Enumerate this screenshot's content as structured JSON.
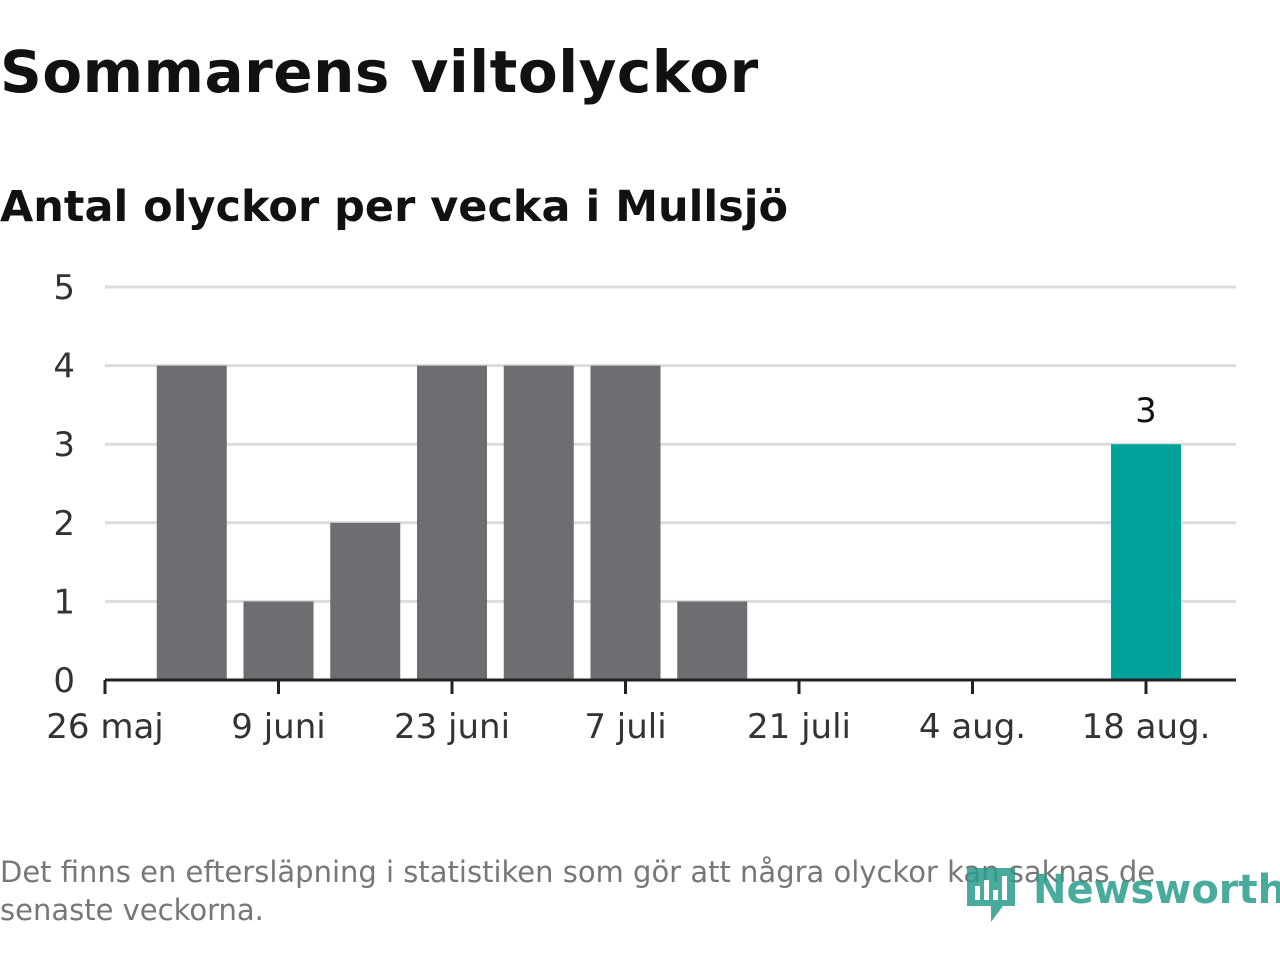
{
  "title": "Sommarens viltolyckor",
  "subtitle": "Antal olyckor per vecka i Mullsjö",
  "footnote": "Det finns en eftersläpning i statistiken som gör att några olyckor kan saknas de senaste veckorna.",
  "brand": {
    "name": "Newsworthy",
    "color": "#2a9d8a"
  },
  "chart_data": {
    "type": "bar",
    "x_dates": [
      "2019-06-02",
      "2019-06-09",
      "2019-06-16",
      "2019-06-23",
      "2019-06-30",
      "2019-07-07",
      "2019-07-14",
      "2019-07-21",
      "2019-07-28",
      "2019-08-04",
      "2019-08-11",
      "2019-08-18"
    ],
    "values": [
      4,
      1,
      2,
      4,
      4,
      4,
      1,
      0,
      0,
      0,
      0,
      3
    ],
    "highlight_index": 11,
    "highlight_label": "3",
    "x_ticks": [
      {
        "date": "2019-05-26",
        "label": "26 maj"
      },
      {
        "date": "2019-06-09",
        "label": "9 juni"
      },
      {
        "date": "2019-06-23",
        "label": "23 juni"
      },
      {
        "date": "2019-07-07",
        "label": "7 juli"
      },
      {
        "date": "2019-07-21",
        "label": "21 juli"
      },
      {
        "date": "2019-08-04",
        "label": "4 aug."
      },
      {
        "date": "2019-08-18",
        "label": "18 aug."
      }
    ],
    "y_ticks": [
      0,
      1,
      2,
      3,
      4,
      5
    ],
    "ylim": [
      0,
      5
    ],
    "grid": true,
    "bar_color": "#6e6d72",
    "highlight_color": "#00a39a"
  }
}
